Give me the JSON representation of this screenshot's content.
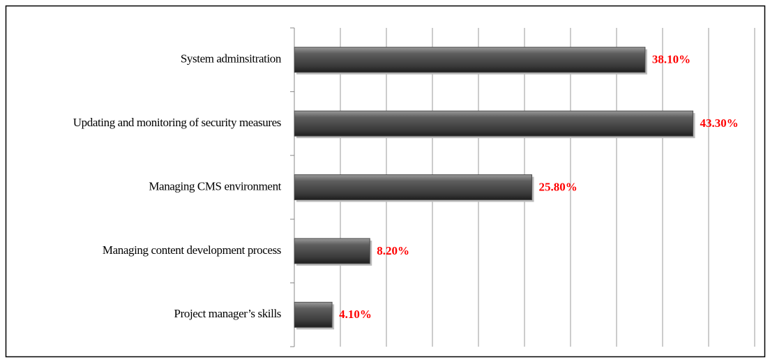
{
  "chart_data": {
    "type": "bar",
    "orientation": "horizontal",
    "categories": [
      "System adminsitration",
      "Updating and monitoring of security measures",
      "Managing CMS environment",
      "Managing content development process",
      "Project manager’s skills"
    ],
    "values": [
      38.1,
      43.3,
      25.8,
      8.2,
      4.1
    ],
    "value_labels": [
      "38.10%",
      "43.30%",
      "25.80%",
      "8.20%",
      "4.10%"
    ],
    "color": "#4d4d4d",
    "xlim": [
      0,
      50
    ],
    "xticks": [
      0,
      5,
      10,
      15,
      20,
      25,
      30,
      35,
      40,
      45,
      50
    ],
    "grid": true
  }
}
